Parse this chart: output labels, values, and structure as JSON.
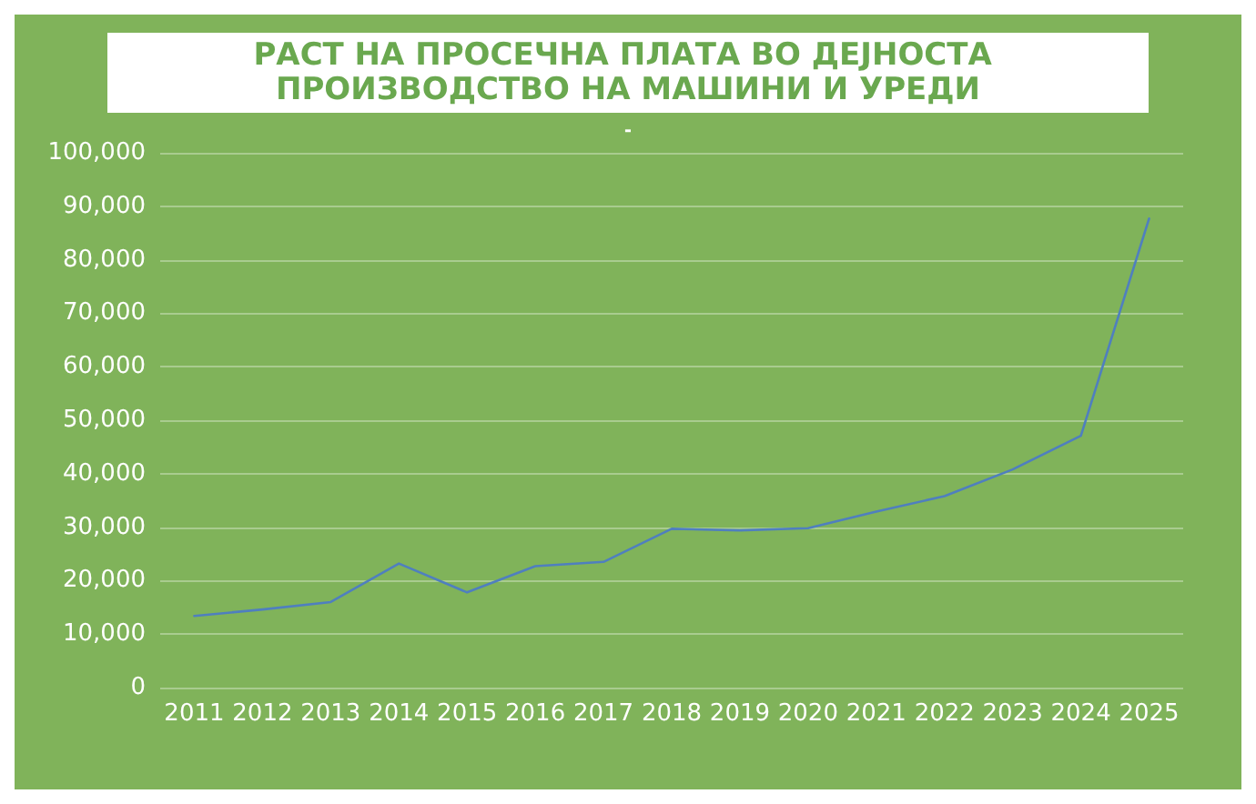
{
  "chart_data": {
    "type": "line",
    "title": "РАСТ НА ПРОСЕЧНА ПЛАТА ВО ДЕЈНОСТА ПРОИЗВОДСТВО НА МАШИНИ И УРЕДИ",
    "subtitle": "-",
    "categories": [
      "2011",
      "2012",
      "2013",
      "2014",
      "2015",
      "2016",
      "2017",
      "2018",
      "2019",
      "2020",
      "2021",
      "2022",
      "2023",
      "2024",
      "2025"
    ],
    "series": [
      {
        "color": "#4f7fbf",
        "values": [
          13400,
          14600,
          16000,
          23200,
          17800,
          22700,
          23500,
          29700,
          29400,
          29800,
          32900,
          35800,
          40800,
          47100,
          87700
        ]
      }
    ],
    "ylim": [
      0,
      100000
    ],
    "yticks": [
      0,
      {
        "value": 10000,
        "label": "10,000"
      },
      {
        "value": 20000,
        "label": "20,000"
      },
      {
        "value": 30000,
        "label": "30,000"
      },
      {
        "value": 40000,
        "label": "40,000"
      },
      {
        "value": 50000,
        "label": "50,000"
      },
      {
        "value": 60000,
        "label": "60,000"
      },
      {
        "value": 70000,
        "label": "70,000"
      },
      {
        "value": 80000,
        "label": "80,000"
      },
      {
        "value": 90000,
        "label": "90,000"
      },
      {
        "value": 100000,
        "label": "100,000"
      }
    ],
    "grid": "y",
    "marker": "none",
    "line_style": "solid"
  }
}
